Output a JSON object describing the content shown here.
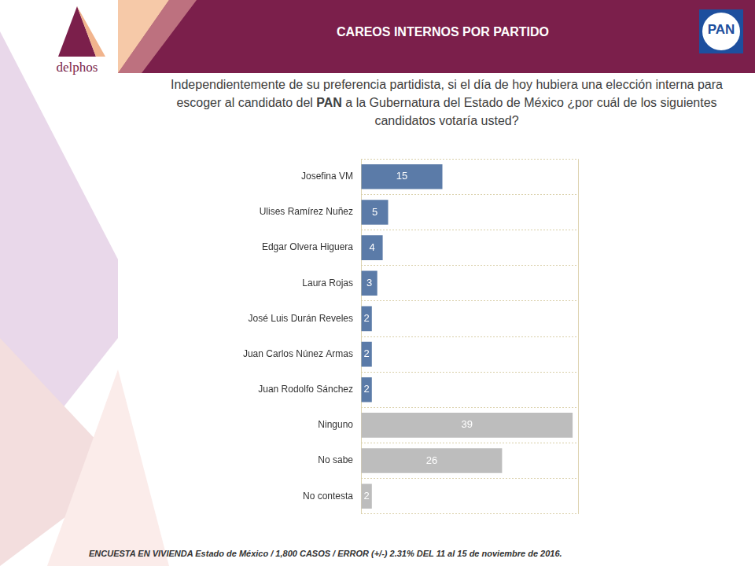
{
  "chart_data": {
    "type": "bar",
    "orientation": "horizontal",
    "title": "CAREOS INTERNOS POR PARTIDO",
    "subtitle": "Independientemente de su preferencia partidista, si el día de hoy hubiera una elección interna para escoger al candidato del PAN a la Gubernatura del Estado de México ¿por cuál de los siguientes candidatos votaría usted?",
    "source": "ENCUESTA EN VIVIENDA Estado de México /  1,800 CASOS / ERROR (+/-) 2.31% DEL 11 al 15 de noviembre de 2016.",
    "logos": [
      "delphos",
      "PAN"
    ],
    "categories": [
      "Josefina VM",
      "Ulises Ramírez Nuñez",
      "Edgar Olvera Higuera",
      "Laura Rojas",
      "José Luis Durán Reveles",
      "Juan Carlos Núnez Armas",
      "Juan Rodolfo Sánchez",
      "Ninguno",
      "No sabe",
      "No contesta"
    ],
    "values": [
      15,
      5,
      4,
      3,
      2,
      2,
      2,
      39,
      26,
      2
    ],
    "colors": [
      "#5b7ba8",
      "#5b7ba8",
      "#5b7ba8",
      "#5b7ba8",
      "#5b7ba8",
      "#5b7ba8",
      "#5b7ba8",
      "#bdbdbd",
      "#bdbdbd",
      "#bdbdbd"
    ],
    "xlim": [
      0,
      40
    ],
    "xticks": [
      0,
      40
    ],
    "grid": true,
    "data_labels": true,
    "tick_labels": "y"
  }
}
